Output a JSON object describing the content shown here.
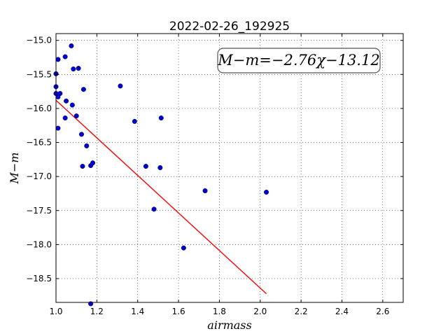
{
  "chart_data": {
    "type": "scatter",
    "title": "2022-02-26_192925",
    "xlabel": "airmass",
    "ylabel": "M−m",
    "xlim": [
      1.0,
      2.7
    ],
    "ylim": [
      -18.85,
      -14.9
    ],
    "grid": true,
    "x_ticks": [
      1.0,
      1.2,
      1.4,
      1.6,
      1.8,
      2.0,
      2.2,
      2.4,
      2.6
    ],
    "x_tick_labels": [
      "1.0",
      "1.2",
      "1.4",
      "1.6",
      "1.8",
      "2.0",
      "2.2",
      "2.4",
      "2.6"
    ],
    "y_ticks": [
      -15.0,
      -15.5,
      -16.0,
      -16.5,
      -17.0,
      -17.5,
      -18.0,
      -18.5
    ],
    "y_tick_labels": [
      "−15.0",
      "−15.5",
      "−16.0",
      "−16.5",
      "−17.0",
      "−17.5",
      "−18.0",
      "−18.5"
    ],
    "annotation": "M−m=−2.76χ−13.12",
    "fit_line": {
      "slope": -2.76,
      "intercept": -13.12,
      "x_range": [
        1.0,
        2.03
      ],
      "color": "#ff0000"
    },
    "marker_color": "#0000cc",
    "points": [
      {
        "x": 1.0,
        "y": -15.49
      },
      {
        "x": 1.0,
        "y": -15.68
      },
      {
        "x": 1.0,
        "y": -15.78
      },
      {
        "x": 1.01,
        "y": -15.83
      },
      {
        "x": 1.02,
        "y": -15.78
      },
      {
        "x": 1.01,
        "y": -15.28
      },
      {
        "x": 1.01,
        "y": -16.29
      },
      {
        "x": 1.045,
        "y": -15.24
      },
      {
        "x": 1.05,
        "y": -15.89
      },
      {
        "x": 1.045,
        "y": -16.14
      },
      {
        "x": 1.075,
        "y": -15.08
      },
      {
        "x": 1.085,
        "y": -15.42
      },
      {
        "x": 1.08,
        "y": -15.95
      },
      {
        "x": 1.11,
        "y": -15.41
      },
      {
        "x": 1.1,
        "y": -16.11
      },
      {
        "x": 1.125,
        "y": -16.38
      },
      {
        "x": 1.135,
        "y": -15.72
      },
      {
        "x": 1.13,
        "y": -16.85
      },
      {
        "x": 1.15,
        "y": -16.55
      },
      {
        "x": 1.17,
        "y": -16.84
      },
      {
        "x": 1.18,
        "y": -16.8
      },
      {
        "x": 1.17,
        "y": -18.87
      },
      {
        "x": 1.315,
        "y": -15.67
      },
      {
        "x": 1.385,
        "y": -16.19
      },
      {
        "x": 1.44,
        "y": -16.85
      },
      {
        "x": 1.48,
        "y": -17.48
      },
      {
        "x": 1.515,
        "y": -16.14
      },
      {
        "x": 1.51,
        "y": -16.87
      },
      {
        "x": 1.625,
        "y": -18.05
      },
      {
        "x": 1.73,
        "y": -17.21
      },
      {
        "x": 2.03,
        "y": -17.23
      }
    ]
  }
}
